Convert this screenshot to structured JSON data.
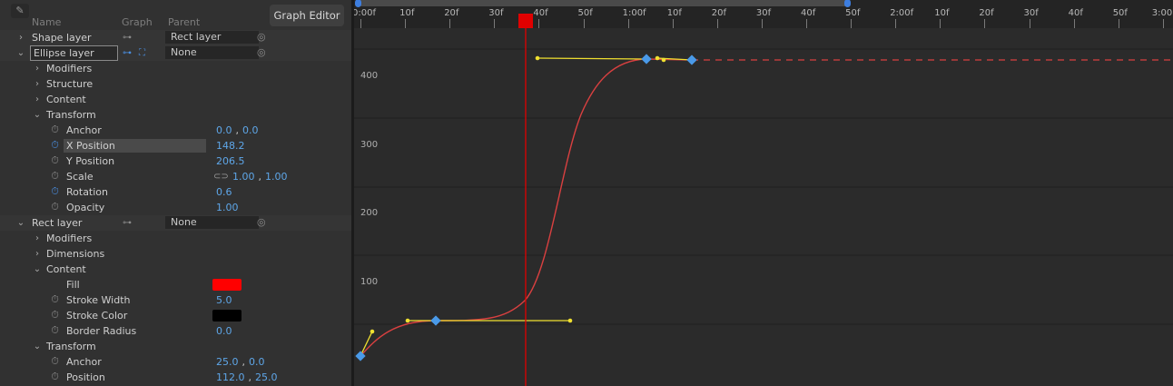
{
  "columns": {
    "name": "Name",
    "graph": "Graph",
    "parent": "Parent"
  },
  "graph_editor_button": "Graph Editor",
  "rows": [
    {
      "kind": "layer",
      "name": "Shape layer",
      "parent": "Rect layer",
      "expanded": false
    },
    {
      "kind": "layer",
      "name": "Ellipse layer",
      "parent": "None",
      "expanded": true,
      "selected": true
    },
    {
      "kind": "group",
      "name": "Modifiers"
    },
    {
      "kind": "group",
      "name": "Structure"
    },
    {
      "kind": "group",
      "name": "Content"
    },
    {
      "kind": "group-open",
      "name": "Transform"
    },
    {
      "kind": "prop",
      "name": "Anchor",
      "v1": "0.0",
      "v2": "0.0"
    },
    {
      "kind": "prop",
      "name": "X Position",
      "v1": "148.2",
      "active": true,
      "selected": true
    },
    {
      "kind": "prop",
      "name": "Y Position",
      "v1": "206.5"
    },
    {
      "kind": "prop",
      "name": "Scale",
      "v1": "1.00",
      "v2": "1.00",
      "linked": true
    },
    {
      "kind": "prop",
      "name": "Rotation",
      "v1": "0.6",
      "active": true
    },
    {
      "kind": "prop",
      "name": "Opacity",
      "v1": "1.00"
    },
    {
      "kind": "layer",
      "name": "Rect layer",
      "parent": "None",
      "expanded": true
    },
    {
      "kind": "group",
      "name": "Modifiers"
    },
    {
      "kind": "group",
      "name": "Dimensions"
    },
    {
      "kind": "group-open",
      "name": "Content"
    },
    {
      "kind": "color",
      "name": "Fill",
      "color": "#ff0000"
    },
    {
      "kind": "prop",
      "name": "Stroke Width",
      "v1": "5.0"
    },
    {
      "kind": "color",
      "name": "Stroke Color",
      "color": "#000000"
    },
    {
      "kind": "prop",
      "name": "Border Radius",
      "v1": "0.0"
    },
    {
      "kind": "group-open",
      "name": "Transform"
    },
    {
      "kind": "prop",
      "name": "Anchor",
      "v1": "25.0",
      "v2": "0.0"
    },
    {
      "kind": "prop",
      "name": "Position",
      "v1": "112.0",
      "v2": "25.0"
    }
  ],
  "timeline": {
    "tick_labels": [
      "0:00f",
      "10f",
      "20f",
      "30f",
      "40f",
      "50f",
      "1:00f",
      "10f",
      "20f",
      "30f",
      "40f",
      "50f",
      "2:00f",
      "10f",
      "20f",
      "30f",
      "40f",
      "50f",
      "3:00"
    ]
  },
  "graph": {
    "y_labels": [
      "400",
      "300",
      "200",
      "100"
    ],
    "curve_color": "#d94040",
    "handle_color": "#f0e030",
    "keyframe_color": "#4a9ae8",
    "playhead_color": "#e00000"
  }
}
